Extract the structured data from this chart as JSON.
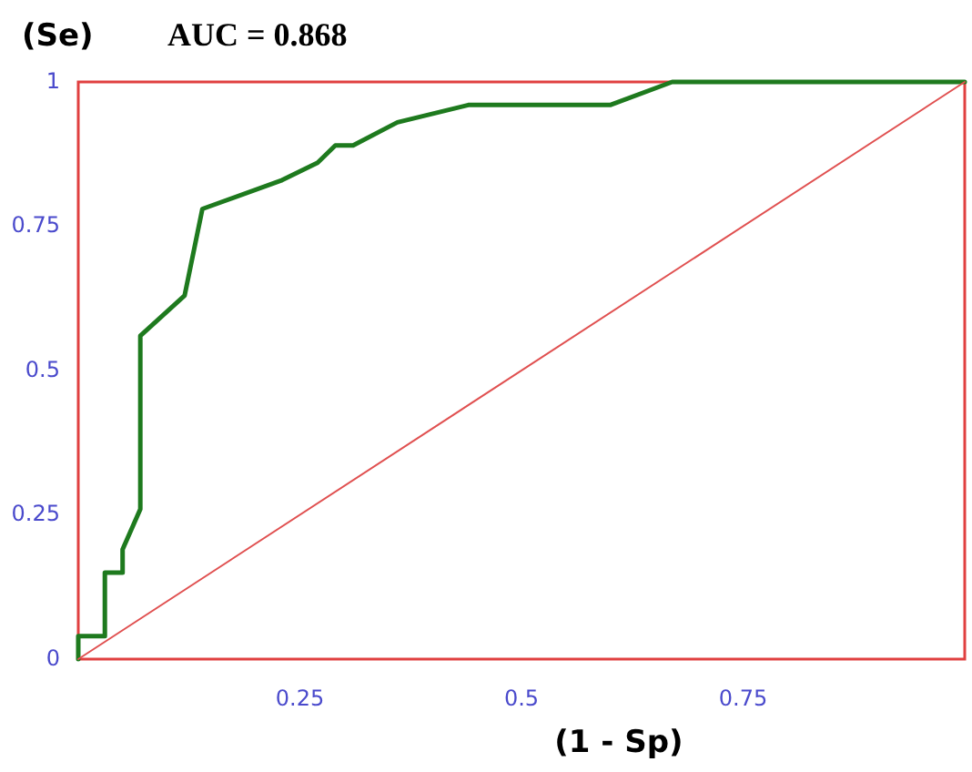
{
  "chart_data": {
    "type": "line",
    "title": "AUC = 0.868",
    "xlabel": "(1 - Sp)",
    "ylabel": "(Se)",
    "xlim": [
      0,
      1
    ],
    "ylim": [
      0,
      1
    ],
    "xticks": [
      0.25,
      0.5,
      0.75
    ],
    "yticks": [
      0,
      0.25,
      0.5,
      0.75,
      1
    ],
    "grid": false,
    "marker": "none",
    "line_style": "solid",
    "series": [
      {
        "color": "#1e7a1e",
        "x": [
          0,
          0,
          0.03,
          0.03,
          0.05,
          0.05,
          0.07,
          0.07,
          0.12,
          0.14,
          0.23,
          0.27,
          0.29,
          0.31,
          0.36,
          0.44,
          0.6,
          0.67,
          1
        ],
        "values": [
          0,
          0.04,
          0.04,
          0.15,
          0.15,
          0.19,
          0.26,
          0.56,
          0.63,
          0.78,
          0.83,
          0.86,
          0.89,
          0.89,
          0.93,
          0.96,
          0.96,
          1,
          1
        ]
      },
      {
        "color": "#e05050",
        "x": [
          0,
          1
        ],
        "values": [
          0,
          1
        ]
      }
    ]
  }
}
